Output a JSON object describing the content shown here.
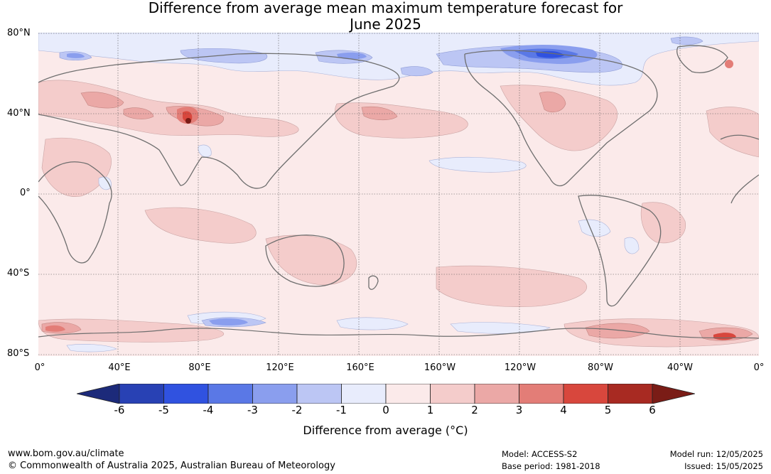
{
  "title": {
    "line1": "Difference from average mean maximum temperature forecast for",
    "line2": "June 2025"
  },
  "map": {
    "lat_labels": [
      "80°N",
      "40°N",
      "0°",
      "40°S",
      "80°S"
    ],
    "lon_labels": [
      "0°",
      "40°E",
      "80°E",
      "120°E",
      "160°E",
      "160°W",
      "120°W",
      "80°W",
      "40°W",
      "0°"
    ],
    "background_color": "#fbeaea"
  },
  "colorbar": {
    "ticks": [
      "-6",
      "-5",
      "-4",
      "-3",
      "-2",
      "-1",
      "0",
      "1",
      "2",
      "3",
      "4",
      "5",
      "6"
    ],
    "colors": [
      "#1c2a7a",
      "#2841b4",
      "#3052e0",
      "#5a78e6",
      "#8a9eee",
      "#bcc6f4",
      "#e8ecfc",
      "#fbeaea",
      "#f4cccb",
      "#eba8a6",
      "#e37d77",
      "#d8473d",
      "#a82a22",
      "#7a1c16"
    ],
    "label": "Difference from average (°C)"
  },
  "footer": {
    "url": "www.bom.gov.au/climate",
    "copyright": "© Commonwealth of Australia 2025, Australian Bureau of Meteorology",
    "model": "Model: ACCESS-S2",
    "base_period": "Base period: 1981-2018",
    "model_run": "Model run: 12/05/2025",
    "issued": "Issued: 15/05/2025"
  }
}
